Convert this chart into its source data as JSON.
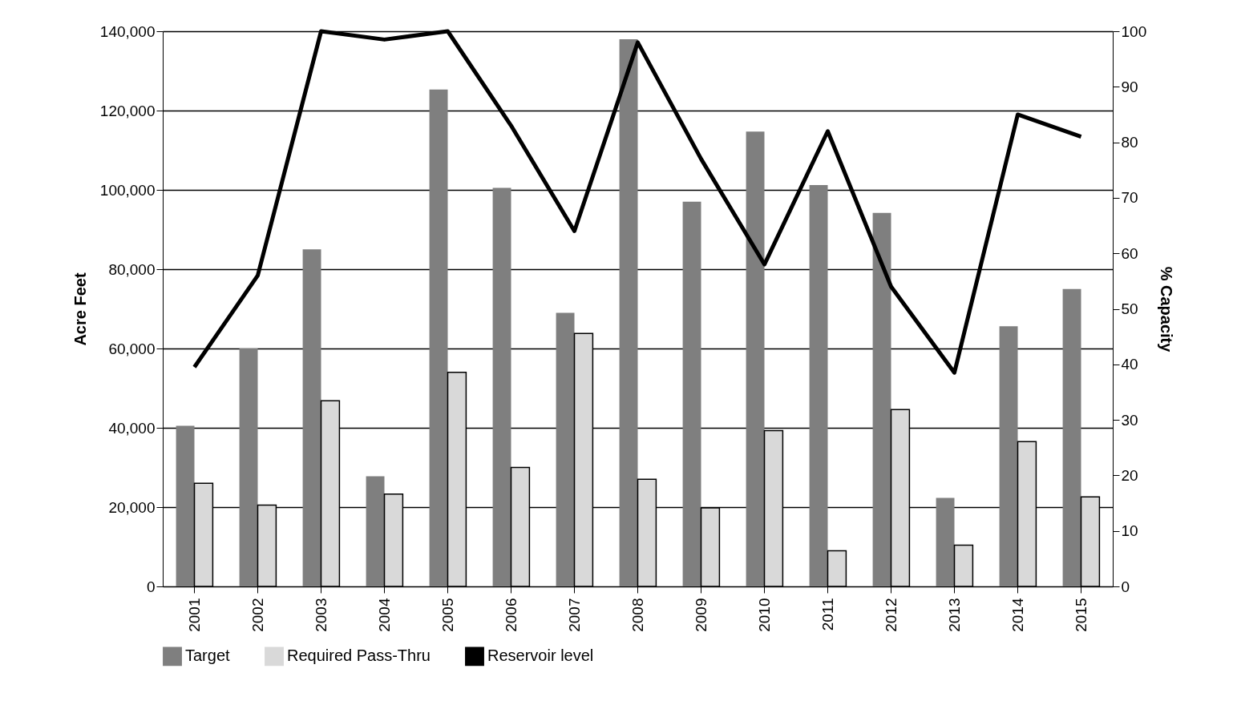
{
  "chart_data": {
    "type": "bar",
    "ylabel": "Acre Feet",
    "y2label": "% Capacity",
    "categories": [
      "2001",
      "2002",
      "2003",
      "2004",
      "2005",
      "2006",
      "2007",
      "2008",
      "2009",
      "2010",
      "2011",
      "2012",
      "2013",
      "2014",
      "2015"
    ],
    "series": [
      {
        "name": "Target",
        "color": "#7f7f7f",
        "values": [
          40500,
          60000,
          85000,
          27800,
          125300,
          100500,
          69000,
          138000,
          97000,
          114700,
          101200,
          94200,
          22300,
          65600,
          75000
        ]
      },
      {
        "name": "Required Pass-Thru",
        "color": "#d9d9d9",
        "values": [
          26000,
          20500,
          46800,
          23300,
          54000,
          30000,
          63800,
          27000,
          19800,
          39300,
          9000,
          44600,
          10400,
          36500,
          22600
        ]
      },
      {
        "name": "Reservoir level",
        "type": "line",
        "axis": "y2",
        "color": "#000000",
        "values": [
          39.5,
          56,
          100,
          98.5,
          100,
          83,
          64,
          98,
          77,
          58,
          82,
          54,
          38.5,
          85,
          81
        ]
      }
    ],
    "ylim": [
      0,
      140000
    ],
    "yticks": [
      {
        "value": 0,
        "label": "0"
      },
      {
        "value": 20000,
        "label": "20,000"
      },
      {
        "value": 40000,
        "label": "40,000"
      },
      {
        "value": 60000,
        "label": "60,000"
      },
      {
        "value": 80000,
        "label": "80,000"
      },
      {
        "value": 100000,
        "label": "100,000"
      },
      {
        "value": 120000,
        "label": "120,000"
      },
      {
        "value": 140000,
        "label": "140,000"
      }
    ],
    "y2lim": [
      0,
      100
    ],
    "y2ticks": [
      0,
      10,
      20,
      30,
      40,
      50,
      60,
      70,
      80,
      90,
      100
    ],
    "grid": "y",
    "legend": "bottom",
    "marker": "none",
    "line_style": "solid"
  }
}
